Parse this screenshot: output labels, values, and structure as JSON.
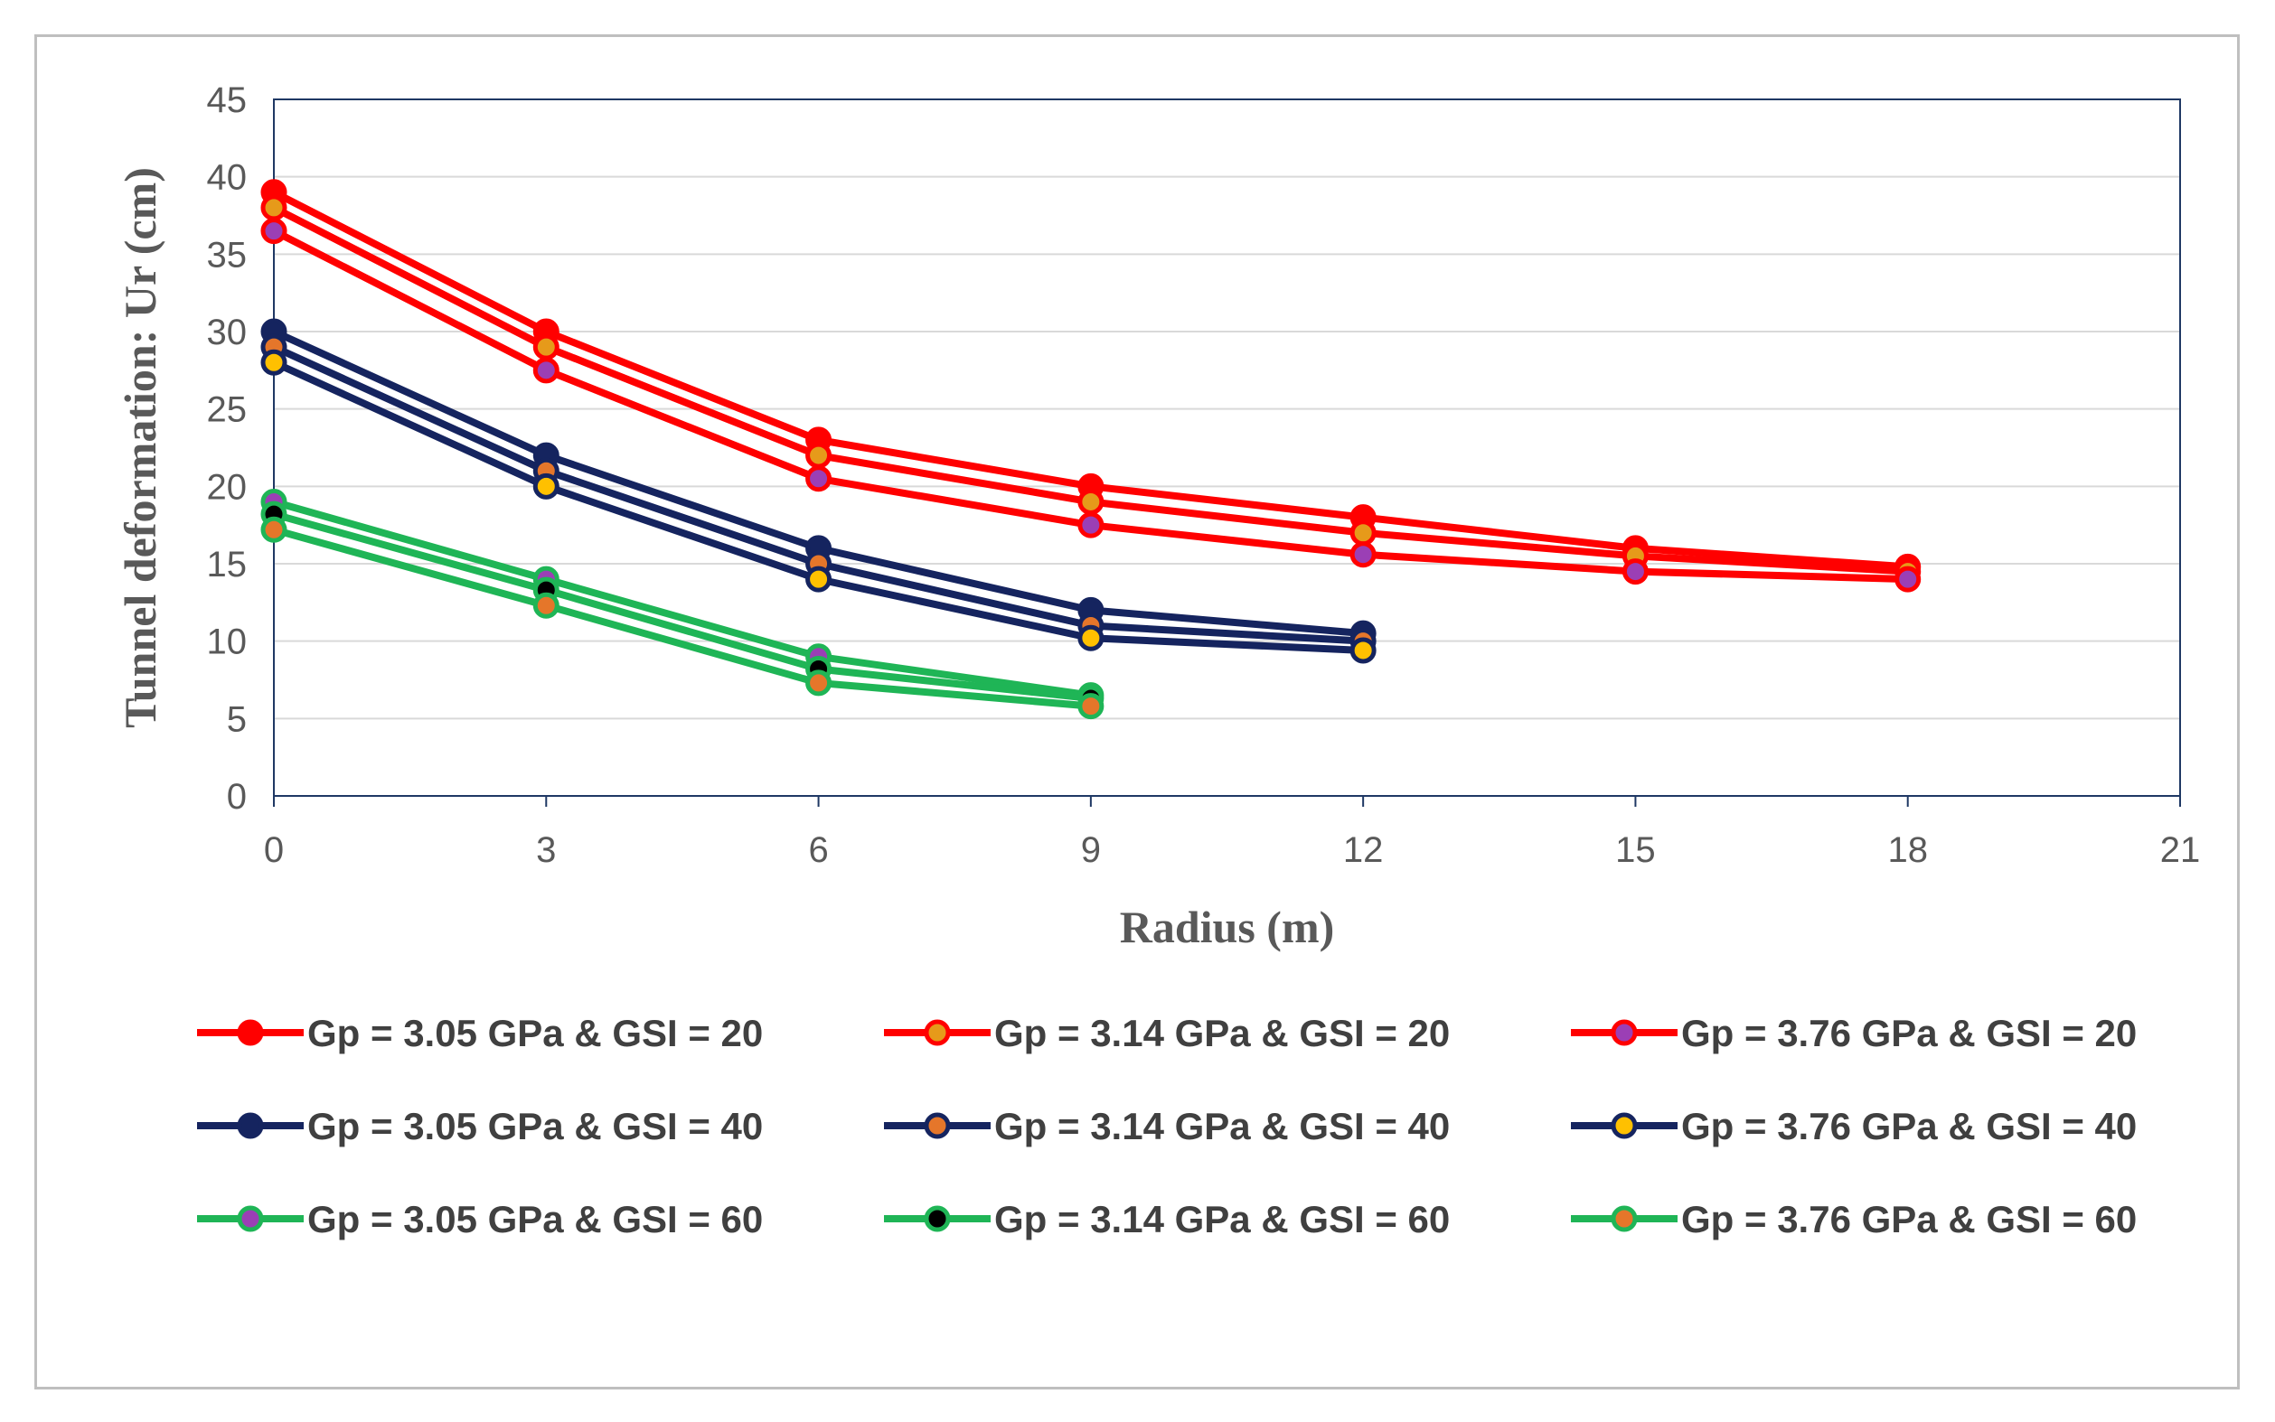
{
  "chart_data": {
    "type": "line",
    "title": "",
    "xlabel": "Radius (m)",
    "ylabel": "Tunnel deformation: Ur (cm)",
    "xlim": [
      0,
      21
    ],
    "ylim": [
      0,
      45
    ],
    "xticks": [
      0,
      3,
      6,
      9,
      12,
      15,
      18,
      21
    ],
    "yticks": [
      0,
      5,
      10,
      15,
      20,
      25,
      30,
      35,
      40,
      45
    ],
    "grid": "horizontal",
    "legend_position": "bottom",
    "series": [
      {
        "name": "Gp = 3.05 GPa  &  GSI = 20",
        "line_color": "#ff0000",
        "marker_color": "#ff0000",
        "x": [
          0,
          3,
          6,
          9,
          12,
          15,
          18
        ],
        "y": [
          39,
          30,
          23,
          20,
          18,
          16,
          14.8
        ]
      },
      {
        "name": "Gp = 3.14 GPa  &  GSI = 20",
        "line_color": "#ff0000",
        "marker_color": "#e69a1a",
        "x": [
          0,
          3,
          6,
          9,
          12,
          15,
          18
        ],
        "y": [
          38,
          29,
          22,
          19,
          17,
          15.5,
          14.5
        ]
      },
      {
        "name": "Gp = 3.76 GPa  &  GSI = 20",
        "line_color": "#ff0000",
        "marker_color": "#9b3fb5",
        "x": [
          0,
          3,
          6,
          9,
          12,
          15,
          18
        ],
        "y": [
          36.5,
          27.5,
          20.5,
          17.5,
          15.6,
          14.5,
          14
        ]
      },
      {
        "name": "Gp = 3.05 GPa  &  GSI = 40",
        "line_color": "#15245f",
        "marker_color": "#15245f",
        "x": [
          0,
          3,
          6,
          9,
          12
        ],
        "y": [
          30,
          22,
          16,
          12,
          10.5
        ]
      },
      {
        "name": "Gp = 3.14 GPa  &  GSI = 40",
        "line_color": "#15245f",
        "marker_color": "#e5762a",
        "x": [
          0,
          3,
          6,
          9,
          12
        ],
        "y": [
          29,
          21,
          15,
          11,
          10
        ]
      },
      {
        "name": "Gp = 3.76 GPa  &  GSI = 40",
        "line_color": "#15245f",
        "marker_color": "#ffc000",
        "x": [
          0,
          3,
          6,
          9,
          12
        ],
        "y": [
          28,
          20,
          14,
          10.2,
          9.4
        ]
      },
      {
        "name": "Gp = 3.05 GPa  &  GSI = 60",
        "line_color": "#1fb556",
        "marker_color": "#9b3fb5",
        "x": [
          0,
          3,
          6,
          9
        ],
        "y": [
          19,
          14,
          9,
          6.5
        ]
      },
      {
        "name": "Gp = 3.14 GPa  &  GSI = 60",
        "line_color": "#1fb556",
        "marker_color": "#000000",
        "x": [
          0,
          3,
          6,
          9
        ],
        "y": [
          18.2,
          13.3,
          8.2,
          6.3
        ]
      },
      {
        "name": "Gp = 3.76 GPa  &  GSI = 60",
        "line_color": "#1fb556",
        "marker_color": "#e5762a",
        "x": [
          0,
          3,
          6,
          9
        ],
        "y": [
          17.2,
          12.3,
          7.3,
          5.8
        ]
      }
    ]
  }
}
